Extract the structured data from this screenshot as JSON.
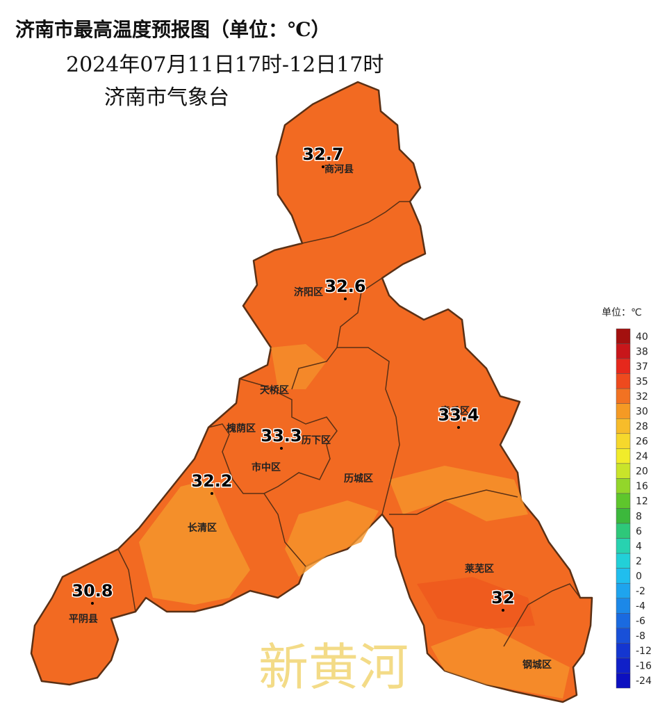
{
  "header": {
    "title": "济南市最高温度预报图（单位：℃）",
    "period": "2024年07月11日17时-12日17时",
    "issuer": "济南市气象台"
  },
  "districts": [
    "商河县",
    "济阳区",
    "天桥区",
    "槐荫区",
    "历下区",
    "市中区",
    "历城区",
    "长清区",
    "平阴县",
    "莱芜区",
    "钢城区",
    "章丘区"
  ],
  "temperatures": [
    32.7,
    32.6,
    33.4,
    33.3,
    32.2,
    30.8,
    32
  ],
  "watermark": "新黄河",
  "legend": {
    "unit": "单位：℃",
    "levels": [
      {
        "label": 40,
        "color": "#a3100f"
      },
      {
        "label": 38,
        "color": "#c8161a"
      },
      {
        "label": 37,
        "color": "#e6281c"
      },
      {
        "label": 35,
        "color": "#ee4a1e"
      },
      {
        "label": 32,
        "color": "#f27222"
      },
      {
        "label": 30,
        "color": "#f59a24"
      },
      {
        "label": 28,
        "color": "#f7bc2a"
      },
      {
        "label": 26,
        "color": "#f6d82c"
      },
      {
        "label": 24,
        "color": "#f1ec2a"
      },
      {
        "label": 20,
        "color": "#c9e42a"
      },
      {
        "label": 16,
        "color": "#93d62a"
      },
      {
        "label": 12,
        "color": "#5ec62c"
      },
      {
        "label": 8,
        "color": "#3cb83c"
      },
      {
        "label": 6,
        "color": "#2ec87a"
      },
      {
        "label": 4,
        "color": "#28d2b0"
      },
      {
        "label": 2,
        "color": "#22d0d8"
      },
      {
        "label": 0,
        "color": "#20beee"
      },
      {
        "label": -2,
        "color": "#1ea4ee"
      },
      {
        "label": -4,
        "color": "#1c88e8"
      },
      {
        "label": -6,
        "color": "#1a6ae0"
      },
      {
        "label": -8,
        "color": "#1850d8"
      },
      {
        "label": -12,
        "color": "#1436d0"
      },
      {
        "label": -16,
        "color": "#1020c8"
      },
      {
        "label": -24,
        "color": "#0c10c0"
      }
    ]
  }
}
